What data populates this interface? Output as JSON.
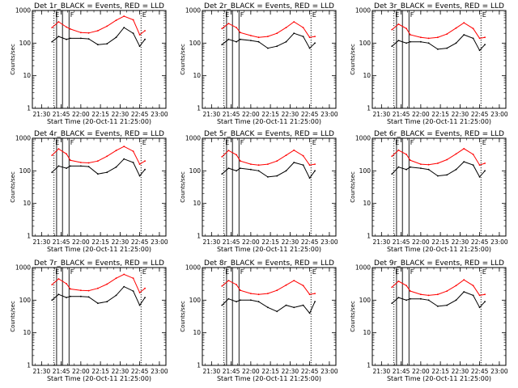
{
  "figure": {
    "layout": "3x3 grid of log-scale count-rate panels",
    "colors": {
      "events": "#000000",
      "lld": "#ff0000"
    },
    "x_ticks": [
      "21:30",
      "21:45",
      "22:00",
      "22:15",
      "22:30",
      "22:45",
      "23:00"
    ],
    "y_ticks": [
      "1",
      "10",
      "100",
      "1000"
    ],
    "vertical_markers": [
      {
        "time": "21:39.5",
        "label": "E",
        "style": "dotted"
      },
      {
        "time": "21:41.5",
        "label": "",
        "style": "solid"
      },
      {
        "time": "21:46",
        "label": "",
        "style": "solid"
      },
      {
        "time": "21:51",
        "label": "F",
        "style": "solid"
      },
      {
        "time": "22:46",
        "label": "E",
        "style": "dotted"
      }
    ]
  },
  "chart_data": [
    {
      "type": "line",
      "title": "Det 1r_BLACK = Events, RED = LLD",
      "xlabel": "Start Time (20-Oct-11 21:25:00)",
      "ylabel": "Counts/sec",
      "x": [
        "21:38",
        "21:43",
        "21:49",
        "21:52",
        "22:00",
        "22:06",
        "22:13",
        "22:20",
        "22:27",
        "22:33",
        "22:40",
        "22:45",
        "22:49"
      ],
      "series": [
        {
          "name": "LLD",
          "color": "#ff0000",
          "values": [
            300,
            450,
            310,
            270,
            210,
            205,
            240,
            330,
            500,
            670,
            520,
            180,
            240
          ]
        },
        {
          "name": "Events",
          "color": "#000000",
          "values": [
            110,
            160,
            130,
            140,
            140,
            135,
            90,
            95,
            150,
            300,
            200,
            80,
            130
          ]
        }
      ],
      "xlim": [
        "21:23",
        "23:05"
      ],
      "ylim": [
        1,
        1000
      ],
      "yscale": "log"
    },
    {
      "type": "line",
      "title": "Det 2r_BLACK = Events, RED = LLD",
      "xlabel": "Start Time (20-Oct-11 21:25:00)",
      "ylabel": "Counts/sec",
      "x": [
        "21:38",
        "21:43",
        "21:49",
        "21:52",
        "22:00",
        "22:06",
        "22:13",
        "22:20",
        "22:27",
        "22:33",
        "22:40",
        "22:45",
        "22:49"
      ],
      "series": [
        {
          "name": "LLD",
          "color": "#ff0000",
          "values": [
            280,
            400,
            300,
            210,
            170,
            150,
            160,
            200,
            300,
            450,
            300,
            150,
            160
          ]
        },
        {
          "name": "Events",
          "color": "#000000",
          "values": [
            90,
            130,
            110,
            130,
            120,
            110,
            70,
            80,
            110,
            200,
            160,
            70,
            100
          ]
        }
      ],
      "xlim": [
        "21:23",
        "23:05"
      ],
      "ylim": [
        1,
        1000
      ],
      "yscale": "log"
    },
    {
      "type": "line",
      "title": "Det 3r_BLACK = Events, RED = LLD",
      "xlabel": "Start Time (20-Oct-11 21:25:00)",
      "ylabel": "Counts/sec",
      "x": [
        "21:38",
        "21:43",
        "21:49",
        "21:52",
        "22:00",
        "22:06",
        "22:13",
        "22:20",
        "22:27",
        "22:33",
        "22:40",
        "22:45",
        "22:49"
      ],
      "series": [
        {
          "name": "LLD",
          "color": "#ff0000",
          "values": [
            260,
            380,
            280,
            180,
            150,
            140,
            150,
            190,
            290,
            420,
            280,
            140,
            150
          ]
        },
        {
          "name": "Events",
          "color": "#000000",
          "values": [
            80,
            120,
            100,
            110,
            110,
            100,
            65,
            70,
            100,
            180,
            140,
            60,
            90
          ]
        }
      ],
      "xlim": [
        "21:23",
        "23:05"
      ],
      "ylim": [
        1,
        1000
      ],
      "yscale": "log"
    },
    {
      "type": "line",
      "title": "Det 4r_BLACK = Events, RED = LLD",
      "xlabel": "Start Time (20-Oct-11 21:25:00)",
      "ylabel": "Counts/sec",
      "x": [
        "21:38",
        "21:43",
        "21:49",
        "21:52",
        "22:00",
        "22:06",
        "22:13",
        "22:20",
        "22:27",
        "22:33",
        "22:40",
        "22:45",
        "22:49"
      ],
      "series": [
        {
          "name": "LLD",
          "color": "#ff0000",
          "values": [
            300,
            470,
            330,
            210,
            180,
            175,
            200,
            280,
            420,
            560,
            400,
            160,
            200
          ]
        },
        {
          "name": "Events",
          "color": "#000000",
          "values": [
            90,
            140,
            120,
            140,
            140,
            135,
            80,
            90,
            130,
            230,
            180,
            70,
            110
          ]
        }
      ],
      "xlim": [
        "21:23",
        "23:05"
      ],
      "ylim": [
        1,
        1000
      ],
      "yscale": "log"
    },
    {
      "type": "line",
      "title": "Det 5r_BLACK = Events, RED = LLD",
      "xlabel": "Start Time (20-Oct-11 21:25:00)",
      "ylabel": "Counts/sec",
      "x": [
        "21:38",
        "21:43",
        "21:49",
        "21:52",
        "22:00",
        "22:06",
        "22:13",
        "22:20",
        "22:27",
        "22:33",
        "22:40",
        "22:45",
        "22:49"
      ],
      "series": [
        {
          "name": "LLD",
          "color": "#ff0000",
          "values": [
            270,
            420,
            310,
            200,
            160,
            150,
            160,
            200,
            300,
            430,
            290,
            150,
            160
          ]
        },
        {
          "name": "Events",
          "color": "#000000",
          "values": [
            80,
            120,
            100,
            120,
            110,
            100,
            65,
            70,
            100,
            180,
            150,
            60,
            100
          ]
        }
      ],
      "xlim": [
        "21:23",
        "23:05"
      ],
      "ylim": [
        1,
        1000
      ],
      "yscale": "log"
    },
    {
      "type": "line",
      "title": "Det 6r_BLACK = Events, RED = LLD",
      "xlabel": "Start Time (20-Oct-11 21:25:00)",
      "ylabel": "Counts/sec",
      "x": [
        "21:38",
        "21:43",
        "21:49",
        "21:52",
        "22:00",
        "22:06",
        "22:13",
        "22:20",
        "22:27",
        "22:33",
        "22:40",
        "22:45",
        "22:49"
      ],
      "series": [
        {
          "name": "LLD",
          "color": "#ff0000",
          "values": [
            280,
            430,
            320,
            210,
            160,
            155,
            170,
            220,
            330,
            480,
            320,
            150,
            170
          ]
        },
        {
          "name": "Events",
          "color": "#000000",
          "values": [
            80,
            130,
            110,
            130,
            120,
            110,
            70,
            75,
            110,
            190,
            150,
            65,
            100
          ]
        }
      ],
      "xlim": [
        "21:23",
        "23:05"
      ],
      "ylim": [
        1,
        1000
      ],
      "yscale": "log"
    },
    {
      "type": "line",
      "title": "Det 7r_BLACK = Events, RED = LLD",
      "xlabel": "Start Time (20-Oct-11 21:25:00)",
      "ylabel": "Counts/sec",
      "x": [
        "21:38",
        "21:43",
        "21:49",
        "21:52",
        "22:00",
        "22:06",
        "22:13",
        "22:20",
        "22:27",
        "22:33",
        "22:40",
        "22:45",
        "22:49"
      ],
      "series": [
        {
          "name": "LLD",
          "color": "#ff0000",
          "values": [
            300,
            450,
            320,
            220,
            200,
            195,
            230,
            310,
            470,
            620,
            470,
            170,
            230
          ]
        },
        {
          "name": "Events",
          "color": "#000000",
          "values": [
            100,
            150,
            120,
            130,
            130,
            125,
            80,
            90,
            140,
            260,
            190,
            70,
            120
          ]
        }
      ],
      "xlim": [
        "21:23",
        "23:05"
      ],
      "ylim": [
        1,
        1000
      ],
      "yscale": "log"
    },
    {
      "type": "line",
      "title": "Det 8r_BLACK = Events, RED = LLD",
      "xlabel": "Start Time (20-Oct-11 21:25:00)",
      "ylabel": "Counts/sec",
      "x": [
        "21:38",
        "21:43",
        "21:49",
        "21:52",
        "22:00",
        "22:06",
        "22:13",
        "22:20",
        "22:27",
        "22:33",
        "22:40",
        "22:45",
        "22:49"
      ],
      "series": [
        {
          "name": "LLD",
          "color": "#ff0000",
          "values": [
            270,
            400,
            300,
            200,
            160,
            150,
            160,
            200,
            290,
            400,
            280,
            150,
            160
          ]
        },
        {
          "name": "Events",
          "color": "#000000",
          "values": [
            70,
            110,
            90,
            100,
            100,
            90,
            60,
            45,
            70,
            60,
            70,
            40,
            90
          ]
        }
      ],
      "xlim": [
        "21:23",
        "23:05"
      ],
      "ylim": [
        1,
        1000
      ],
      "yscale": "log"
    },
    {
      "type": "line",
      "title": "Det 9r_BLACK = Events, RED = LLD",
      "xlabel": "Start Time (20-Oct-11 21:25:00)",
      "ylabel": "Counts/sec",
      "x": [
        "21:38",
        "21:43",
        "21:49",
        "21:52",
        "22:00",
        "22:06",
        "22:13",
        "22:20",
        "22:27",
        "22:33",
        "22:40",
        "22:45",
        "22:49"
      ],
      "series": [
        {
          "name": "LLD",
          "color": "#ff0000",
          "values": [
            250,
            380,
            280,
            190,
            150,
            140,
            150,
            190,
            280,
            420,
            280,
            140,
            150
          ]
        },
        {
          "name": "Events",
          "color": "#000000",
          "values": [
            80,
            120,
            100,
            110,
            110,
            100,
            65,
            70,
            100,
            180,
            140,
            60,
            90
          ]
        }
      ],
      "xlim": [
        "21:23",
        "23:05"
      ],
      "ylim": [
        1,
        1000
      ],
      "yscale": "log"
    }
  ]
}
